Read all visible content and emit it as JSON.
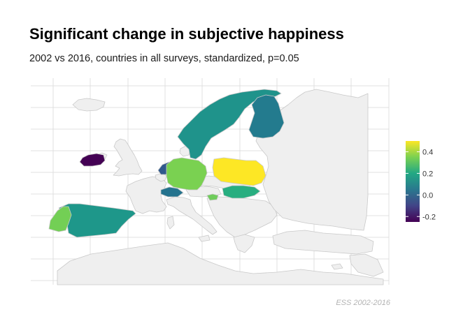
{
  "title": "Significant change in subjective happiness",
  "subtitle": "2002 vs 2016, countries in all surveys, standardized, p=0.05",
  "caption": "ESS 2002-2016",
  "colors": {
    "no_data": "#efefef",
    "border": "#c9c9c9",
    "grid": "#d9d9d9"
  },
  "legend": {
    "range": [
      -0.25,
      0.5
    ],
    "ticks": [
      {
        "value": 0.4,
        "label": "0.4"
      },
      {
        "value": 0.2,
        "label": "0.2"
      },
      {
        "value": 0.0,
        "label": "0.0"
      },
      {
        "value": -0.2,
        "label": "-0.2"
      }
    ],
    "palette": [
      "#fde725",
      "#7ad151",
      "#22a884",
      "#2a788e",
      "#414487",
      "#440154"
    ]
  },
  "regions": [
    {
      "name": "Ireland",
      "value": -0.2,
      "color": "#440154"
    },
    {
      "name": "Netherlands",
      "value": 0.0,
      "color": "#30598c"
    },
    {
      "name": "Switzerland",
      "value": 0.05,
      "color": "#24738e"
    },
    {
      "name": "Norway/Sweden",
      "value": 0.1,
      "color": "#1f938b"
    },
    {
      "name": "Finland",
      "value": 0.05,
      "color": "#237b8e"
    },
    {
      "name": "Spain",
      "value": 0.1,
      "color": "#1e978a"
    },
    {
      "name": "Hungary",
      "value": 0.15,
      "color": "#28ae80"
    },
    {
      "name": "Slovenia",
      "value": 0.25,
      "color": "#6fcc5b"
    },
    {
      "name": "Germany",
      "value": 0.3,
      "color": "#7ad151"
    },
    {
      "name": "Portugal",
      "value": 0.3,
      "color": "#73cf55"
    },
    {
      "name": "Poland",
      "value": 0.45,
      "color": "#fde725"
    }
  ]
}
